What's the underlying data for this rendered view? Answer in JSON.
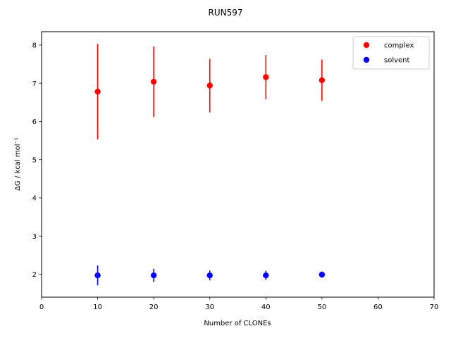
{
  "chart_data": {
    "type": "scatter",
    "title": "RUN597",
    "xlabel": "Number of CLONEs",
    "ylabel": "ΔG / kcal mol⁻¹",
    "xlim": [
      0,
      70
    ],
    "ylim": [
      1.4,
      8.35
    ],
    "xticks": [
      0,
      10,
      20,
      30,
      40,
      50,
      60,
      70
    ],
    "yticks": [
      2,
      3,
      4,
      5,
      6,
      7,
      8
    ],
    "grid": false,
    "legend_position": "top-right",
    "series": [
      {
        "name": "complex",
        "color": "#ff0000",
        "x": [
          10,
          20,
          30,
          40,
          50
        ],
        "y": [
          6.78,
          7.04,
          6.94,
          7.16,
          7.08
        ],
        "err": [
          1.25,
          0.92,
          0.7,
          0.58,
          0.54
        ]
      },
      {
        "name": "solvent",
        "color": "#0000ff",
        "x": [
          10,
          20,
          30,
          40,
          50
        ],
        "y": [
          1.97,
          1.97,
          1.97,
          1.97,
          1.99
        ],
        "err": [
          0.26,
          0.17,
          0.13,
          0.12,
          0.08
        ]
      }
    ]
  }
}
